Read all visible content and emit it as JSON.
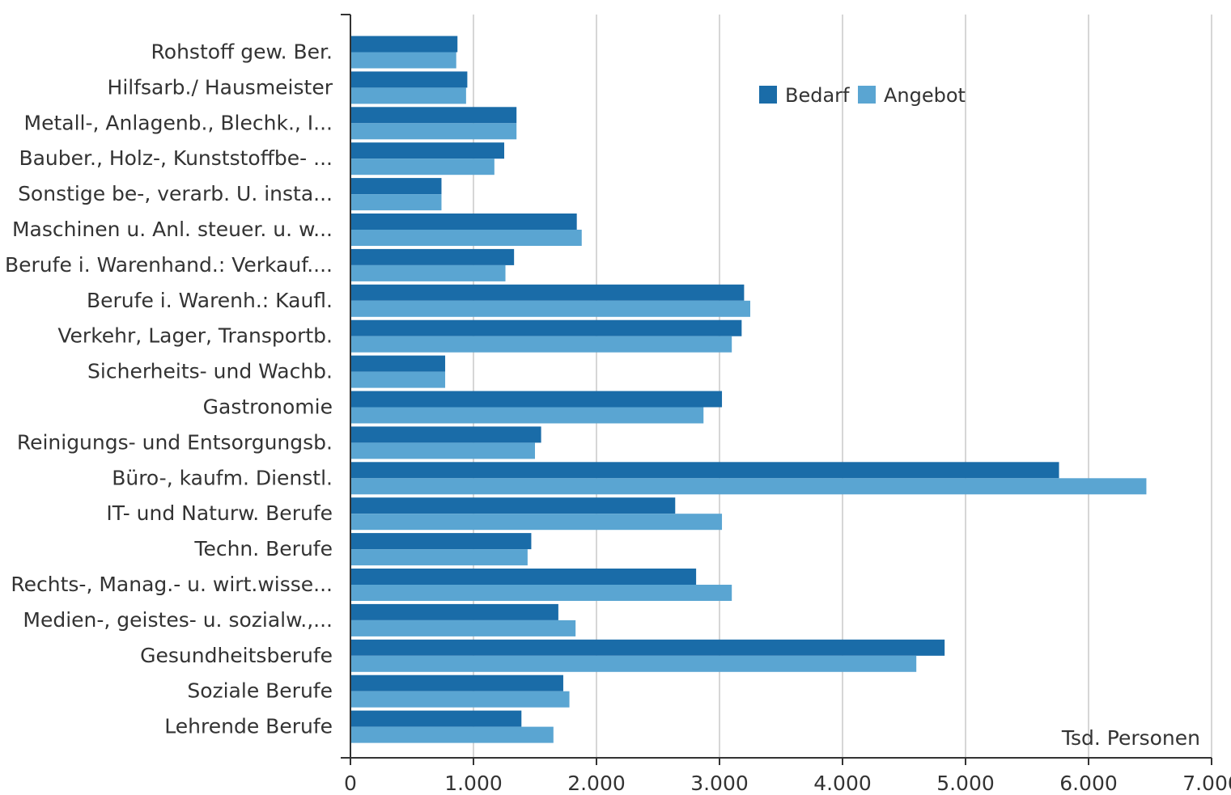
{
  "chart_data": {
    "type": "bar",
    "orientation": "horizontal",
    "categories": [
      "Rohstoff gew. Ber.",
      "Hilfsarb./ Hausmeister",
      "Metall-, Anlagenb., Blechk., I...",
      "Bauber., Holz-, Kunststoffbe- ...",
      "Sonstige be-, verarb. U. insta...",
      "Maschinen u. Anl. steuer. u. w...",
      "Berufe i. Warenhand.: Verkauf....",
      "Berufe i. Warenh.: Kaufl.",
      "Verkehr, Lager, Transportb.",
      "Sicherheits- und Wachb.",
      "Gastronomie",
      "Reinigungs- und Entsorgungsb.",
      "Büro-, kaufm. Dienstl.",
      "IT- und Naturw. Berufe",
      "Techn. Berufe",
      "Rechts-, Manag.- u. wirt.wisse...",
      "Medien-, geistes- u. sozialw.,...",
      "Gesundheitsberufe",
      "Soziale Berufe",
      "Lehrende Berufe"
    ],
    "series": [
      {
        "name": "Bedarf",
        "color": "#1a6ca8",
        "values": [
          870,
          950,
          1350,
          1250,
          740,
          1840,
          1330,
          3200,
          3180,
          770,
          3020,
          1550,
          5760,
          2640,
          1470,
          2810,
          1690,
          4830,
          1730,
          1390
        ]
      },
      {
        "name": "Angebot",
        "color": "#5aa5d2",
        "values": [
          860,
          940,
          1350,
          1170,
          740,
          1880,
          1260,
          3250,
          3100,
          770,
          2870,
          1500,
          6470,
          3020,
          1440,
          3100,
          1830,
          4600,
          1780,
          1650
        ]
      }
    ],
    "xlim": [
      0,
      7000
    ],
    "xticks": [
      0,
      1000,
      2000,
      3000,
      4000,
      5000,
      6000,
      7000
    ],
    "xtick_labels": [
      "0",
      "1.000",
      "2.000",
      "3.000",
      "4.000",
      "5.000",
      "6.000",
      "7.000"
    ],
    "xlabel": "Tsd. Personen",
    "ylabel": "",
    "title": "",
    "grid": "vertical",
    "legend_position": "top-right"
  }
}
